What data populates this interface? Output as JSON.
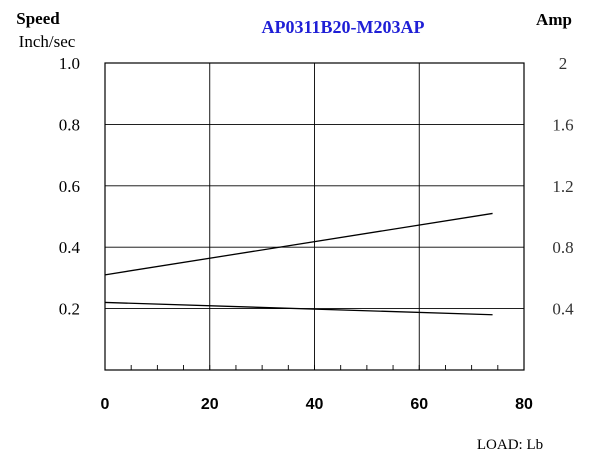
{
  "chart_data": {
    "type": "line",
    "title": "AP0311B20-M203AP",
    "title_color": "#1f1fd6",
    "left_axis": {
      "label": "Speed",
      "unit": "Inch/sec",
      "ylim": [
        0,
        1.0
      ],
      "ticks": [
        "0.2",
        "0.4",
        "0.6",
        "0.8",
        "1.0"
      ]
    },
    "right_axis": {
      "label": "Amp",
      "ylim": [
        0,
        2
      ],
      "ticks": [
        "0.4",
        "0.8",
        "1.2",
        "1.6",
        "2"
      ]
    },
    "x_axis": {
      "label": "LOAD: Lb",
      "xlim": [
        0,
        80
      ],
      "ticks": [
        "0",
        "20",
        "40",
        "60",
        "80"
      ]
    },
    "grid": true,
    "series": [
      {
        "axis": "left",
        "x": [
          0,
          74
        ],
        "values": [
          0.31,
          0.51
        ]
      },
      {
        "axis": "left",
        "x": [
          0,
          74
        ],
        "values": [
          0.22,
          0.18
        ]
      }
    ]
  }
}
